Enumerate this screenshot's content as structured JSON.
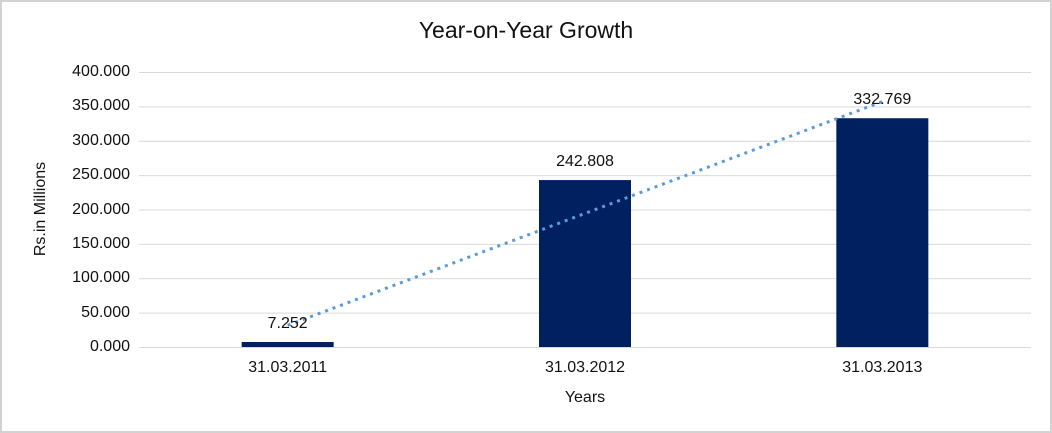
{
  "canvas": {
    "background": "#ffffff",
    "border_color": "#d2d2d2"
  },
  "chart_data": {
    "type": "bar",
    "title": "Year-on-Year Growth",
    "xlabel": "Years",
    "ylabel": "Rs.in Millions",
    "categories": [
      "31.03.2011",
      "31.03.2012",
      "31.03.2013"
    ],
    "values": [
      7.252,
      242.808,
      332.769
    ],
    "data_labels": [
      "7.252",
      "242.808",
      "332.769"
    ],
    "ylim": [
      0,
      400
    ],
    "y_ticks": [
      {
        "value": 0,
        "label": "0.000"
      },
      {
        "value": 50,
        "label": "50.000"
      },
      {
        "value": 100,
        "label": "100.000"
      },
      {
        "value": 150,
        "label": "150.000"
      },
      {
        "value": 200,
        "label": "200.000"
      },
      {
        "value": 250,
        "label": "250.000"
      },
      {
        "value": 300,
        "label": "300.000"
      },
      {
        "value": 350,
        "label": "350.000"
      },
      {
        "value": 400,
        "label": "400.000"
      }
    ],
    "grid": true,
    "legend": "none",
    "trendline": {
      "type": "linear",
      "style": "dotted"
    },
    "colors": {
      "bar": "#002060",
      "trendline": "#5b9bd5",
      "gridline": "#d9d9d9",
      "text": "#111111"
    }
  }
}
